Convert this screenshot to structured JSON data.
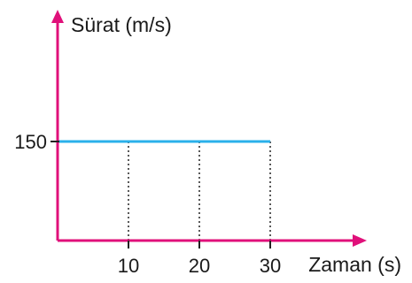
{
  "chart_data": {
    "type": "line",
    "ylabel": "Sürat (m/s)",
    "xlabel": "Zaman (s)",
    "x": [
      0,
      30
    ],
    "series": [
      {
        "values": [
          150,
          150
        ]
      }
    ],
    "x_ticks": [
      "10",
      "20",
      "30"
    ],
    "y_ticks": [
      "150"
    ],
    "xlim": [
      0,
      40
    ],
    "ylim": [
      0,
      300
    ],
    "grid": false,
    "reference_lines": "dotted vertical lines at x = 10, 20, 30 up to the line",
    "colors": {
      "axes": "#e0107a",
      "series": "#2ab0ea",
      "reference": "#222222"
    }
  }
}
